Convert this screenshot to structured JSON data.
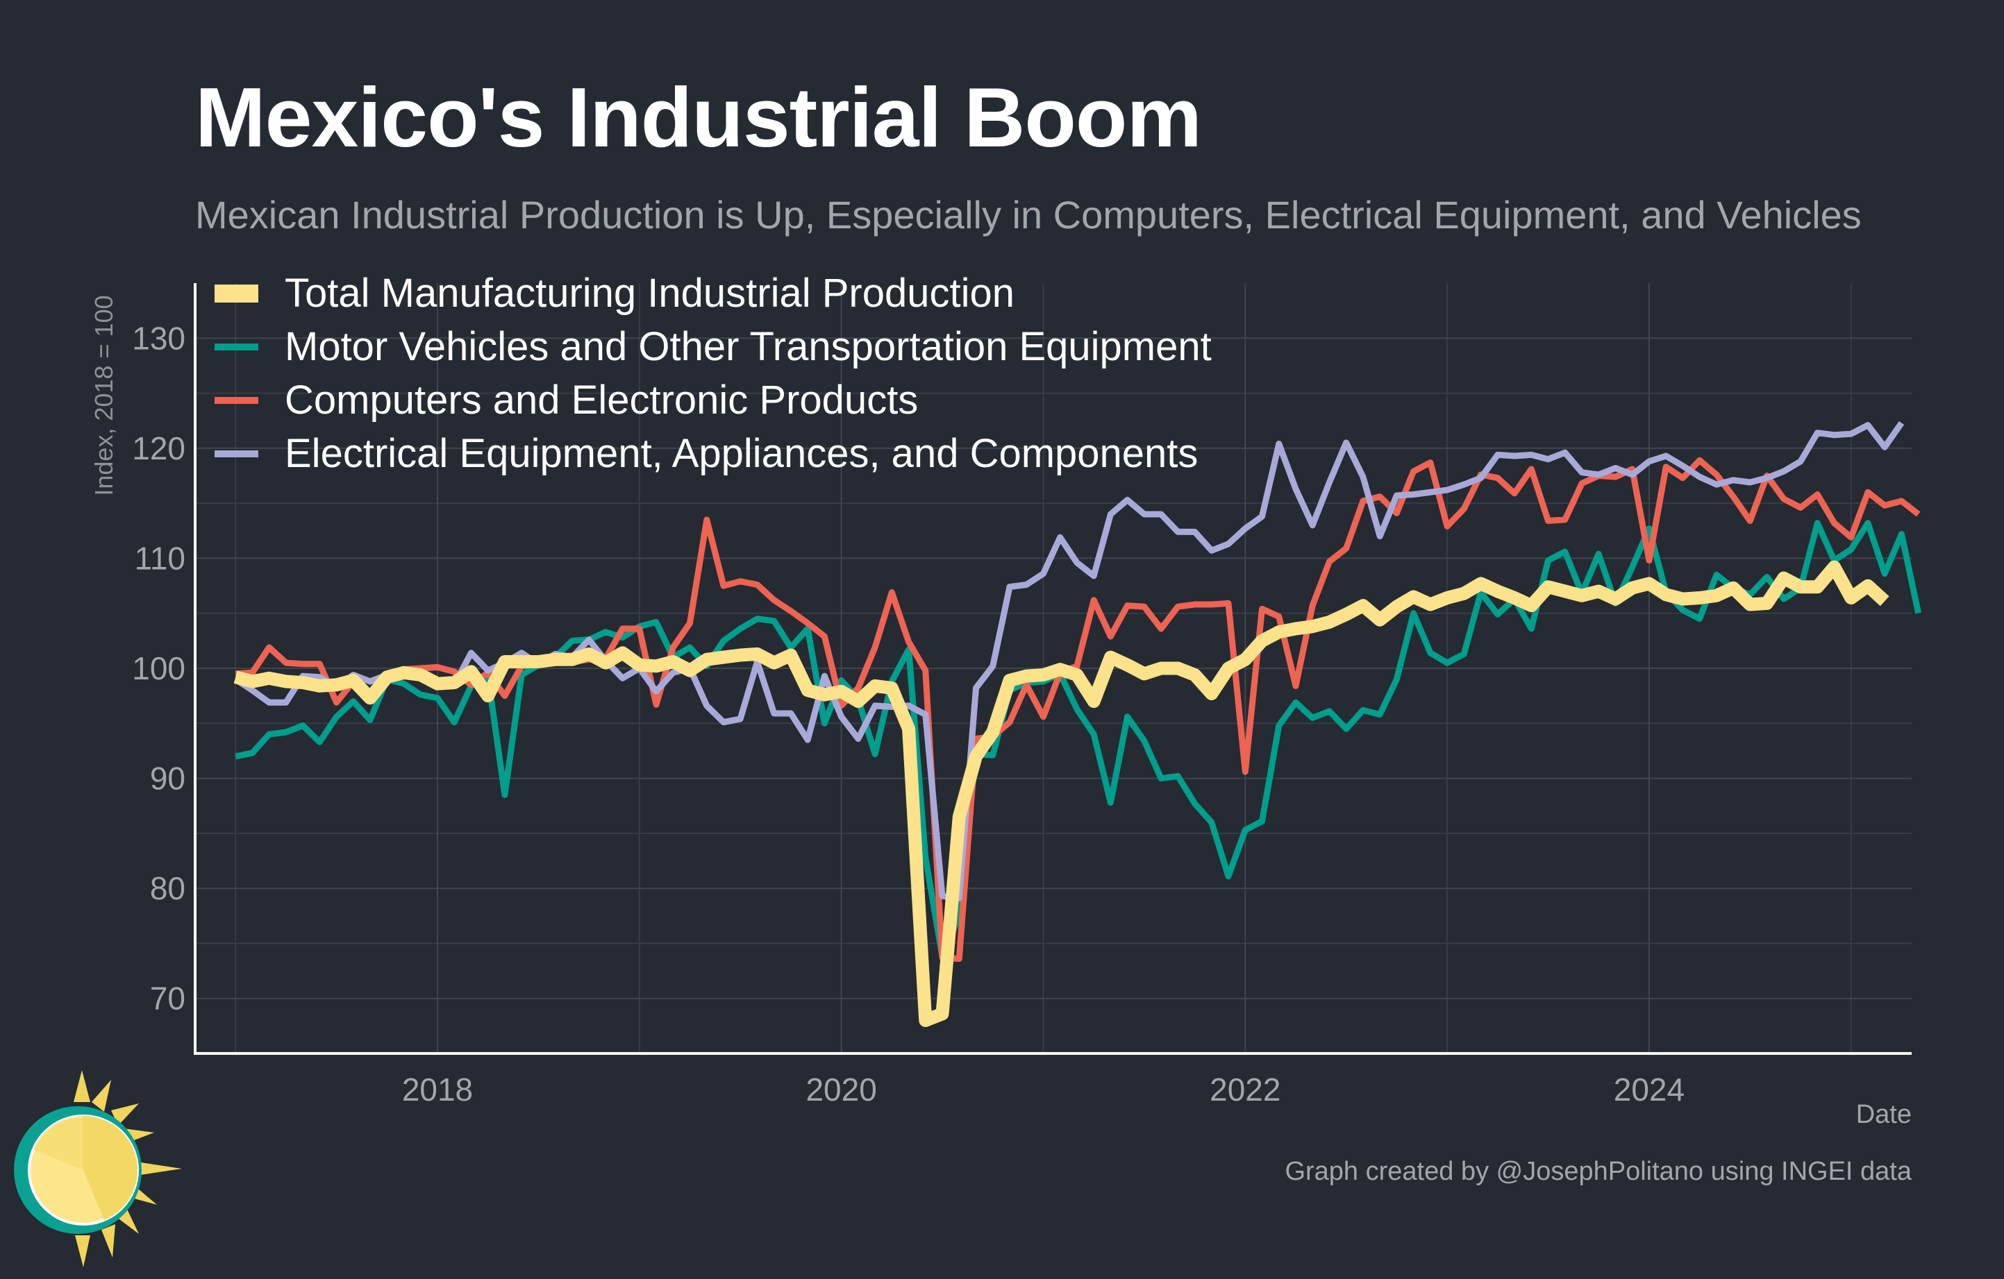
{
  "title": "Mexico's Industrial Boom",
  "subtitle": "Mexican Industrial Production is Up, Especially in Computers, Electrical Equipment, and Vehicles",
  "credit": "Graph created by @JosephPolitano using INGEI data",
  "chart_data": {
    "type": "line",
    "xlabel": "Date",
    "ylabel": "Index, 2018 = 100",
    "ylim": [
      65,
      135
    ],
    "yticks": [
      70,
      80,
      90,
      100,
      110,
      120,
      130
    ],
    "xlim": [
      2016.8,
      2025.3
    ],
    "xticks": [
      2018,
      2020,
      2022,
      2024
    ],
    "xtick_labels": [
      "2018",
      "2020",
      "2022",
      "2024"
    ],
    "x_start": 2017.0,
    "x_step_months": 1,
    "grid": true,
    "legend_position": "top-left",
    "series": [
      {
        "name": "Motor Vehicles and Other Transportation Equipment",
        "color": "#009e8c",
        "values": [
          92,
          92.3,
          94,
          94.2,
          94.8,
          93.3,
          95.6,
          97,
          95.3,
          99,
          98.6,
          97.6,
          97.3,
          95.1,
          98.4,
          99.3,
          88.5,
          99.4,
          100.3,
          101,
          102.5,
          102.6,
          103.3,
          102.8,
          103.8,
          104.2,
          101,
          101.9,
          100.2,
          102.5,
          103.6,
          104.5,
          104.3,
          101.9,
          103.6,
          95,
          98.9,
          97.2,
          92.2,
          98.8,
          101.7,
          82.8,
          73.8,
          77.5,
          92.2,
          92.1,
          98,
          98.7,
          98.8,
          99.5,
          96.3,
          94,
          87.8,
          95.6,
          93.4,
          90,
          90.2,
          87.7,
          86,
          81.1,
          85.3,
          86.1,
          94.8,
          96.9,
          95.5,
          96.1,
          94.5,
          96.2,
          95.8,
          99,
          105,
          101.4,
          100.5,
          101.3,
          106.9,
          104.9,
          106.3,
          103.6,
          109.8,
          110.6,
          106.8,
          110.4,
          105.9,
          109.2,
          112.7,
          106.9,
          105.3,
          104.5,
          108.5,
          107.3,
          106.7,
          108.3,
          106.3,
          107.3,
          113.2,
          109.8,
          110.8,
          113.2,
          108.6,
          112.2,
          105
        ]
      },
      {
        "name": "Computers and Electronic Products",
        "color": "#ee6352",
        "values": [
          99.5,
          99.6,
          101.9,
          100.5,
          100.4,
          100.4,
          96.9,
          98.8,
          97.5,
          99.4,
          99.9,
          100,
          100.1,
          99.7,
          98.5,
          99.6,
          97.5,
          100.2,
          100.4,
          100.5,
          100.6,
          100.8,
          100.9,
          103.6,
          103.6,
          96.7,
          101.9,
          104.1,
          113.5,
          107.5,
          107.9,
          107.6,
          106.2,
          105.2,
          104.1,
          102.9,
          96.6,
          98.2,
          101.9,
          106.9,
          102.4,
          99.8,
          73.7,
          73.6,
          93.6,
          93.8,
          95.1,
          98.5,
          95.6,
          99.6,
          100.2,
          106.2,
          102.9,
          105.7,
          105.6,
          103.6,
          105.6,
          105.8,
          105.8,
          105.9,
          90.6,
          105.4,
          104.7,
          98.4,
          105.7,
          109.7,
          110.9,
          115.2,
          115.6,
          114.1,
          117.9,
          118.7,
          112.9,
          114.5,
          117.6,
          117.3,
          115.9,
          118.1,
          113.4,
          113.5,
          116.8,
          117.5,
          117.4,
          118.1,
          109.8,
          118.3,
          117.3,
          118.9,
          117.6,
          115.6,
          113.4,
          117.5,
          115.4,
          114.6,
          115.8,
          113.2,
          111.9,
          116,
          114.8,
          115.2,
          114
        ]
      },
      {
        "name": "Electrical Equipment, Appliances, and Components",
        "color": "#a9a9d9",
        "values": [
          99,
          98,
          96.9,
          96.9,
          99.3,
          99.2,
          98.3,
          99.4,
          98.8,
          99.4,
          99.4,
          99.6,
          98.4,
          98.5,
          101.4,
          99.8,
          100.5,
          101.4,
          100.4,
          101.3,
          101,
          102.6,
          100.7,
          99.1,
          100,
          97.9,
          99.6,
          100,
          96.6,
          95.1,
          95.4,
          100.6,
          95.9,
          95.9,
          93.5,
          99.3,
          95.6,
          93.6,
          96.6,
          96.5,
          96.6,
          95.8,
          79.3,
          79.1,
          98.2,
          100.2,
          107.4,
          107.6,
          108.6,
          111.9,
          109.6,
          108.4,
          114,
          115.3,
          114,
          114,
          112.4,
          112.4,
          110.7,
          111.3,
          112.7,
          113.8,
          120.4,
          116.3,
          113,
          116.9,
          120.5,
          117.4,
          112,
          115.7,
          115.8,
          116,
          116.2,
          116.7,
          117.3,
          119.4,
          119.3,
          119.4,
          119,
          119.6,
          117.8,
          117.6,
          118.2,
          117.6,
          118.8,
          119.3,
          118.4,
          117.4,
          116.7,
          117.1,
          116.9,
          117.3,
          117.9,
          118.8,
          121.4,
          121.2,
          121.3,
          122.1,
          120.1,
          122.3
        ]
      },
      {
        "name": "Total Manufacturing Industrial Production",
        "color": "#fce28a",
        "values": [
          99.2,
          98.8,
          99.1,
          98.8,
          98.7,
          98.4,
          98.5,
          98.9,
          97.3,
          99.2,
          99.6,
          99.4,
          98.6,
          98.7,
          99.7,
          97.5,
          100.6,
          100.6,
          100.6,
          100.8,
          100.8,
          101.3,
          100.5,
          101.4,
          100.3,
          100.2,
          100.6,
          99.8,
          100.8,
          101,
          101.2,
          101.3,
          100.5,
          101.2,
          98,
          97.6,
          97.9,
          97,
          98.4,
          98.2,
          94.5,
          68,
          68.6,
          86.5,
          92,
          94.2,
          98.9,
          99.3,
          99.4,
          99.9,
          99.4,
          97,
          101,
          100.3,
          99.5,
          100,
          100,
          99.4,
          97.7,
          100,
          100.8,
          102.5,
          103.3,
          103.6,
          103.8,
          104.2,
          104.9,
          105.7,
          104.4,
          105.6,
          106.5,
          105.8,
          106.4,
          106.8,
          107.7,
          107,
          106.4,
          105.7,
          107.4,
          107,
          106.6,
          107,
          106.3,
          107.3,
          107.7,
          106.7,
          106.3,
          106.4,
          106.6,
          107.3,
          105.8,
          105.9,
          108.2,
          107.4,
          107.4,
          109.2,
          106.4,
          107.5,
          106.1
        ]
      }
    ]
  }
}
